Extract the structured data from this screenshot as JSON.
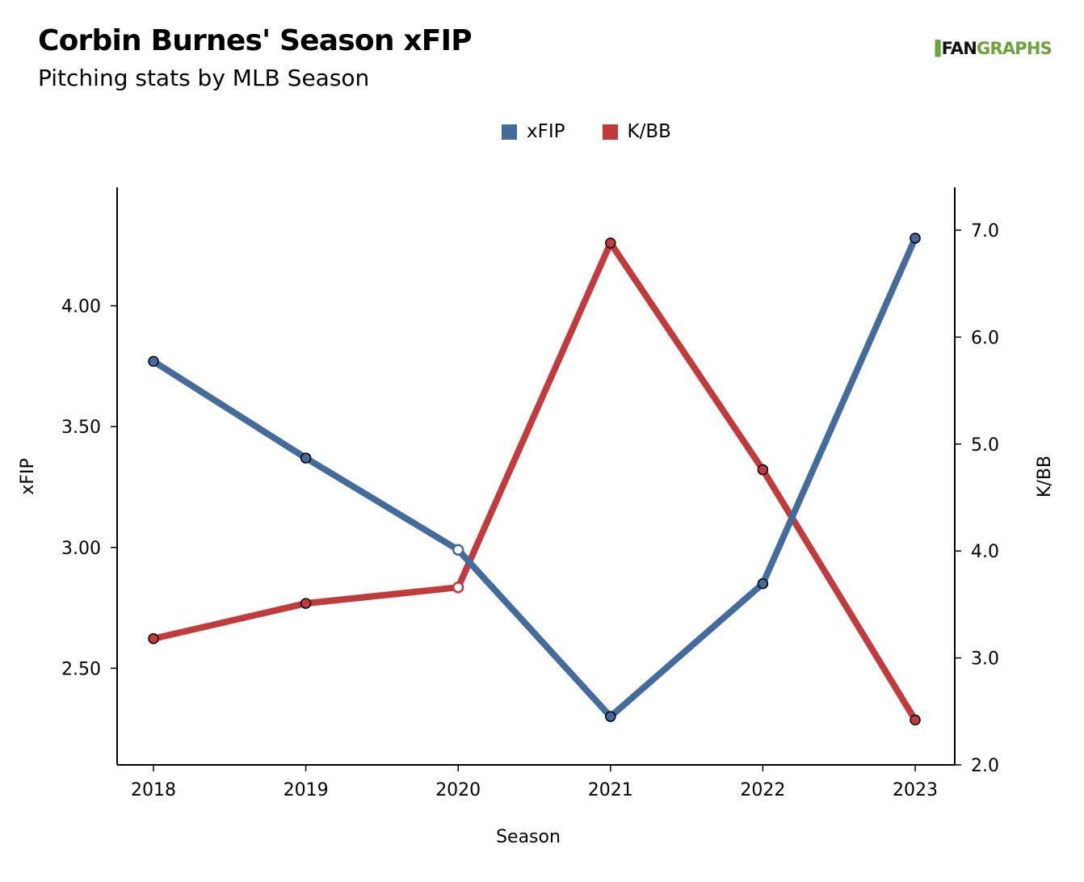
{
  "title": "Corbin Burnes' Season xFIP",
  "subtitle": "Pitching stats by MLB Season",
  "logo": {
    "mark": "▐",
    "fan": "FAN",
    "graphs": "GRAPHS"
  },
  "colors": {
    "xfip": "#436b9b",
    "kbb": "#c23b3c",
    "logo_green": "#6aa43b"
  },
  "chart_data": {
    "type": "line",
    "categories": [
      "2018",
      "2019",
      "2020",
      "2021",
      "2022",
      "2023"
    ],
    "xlabel": "Season",
    "y_left": {
      "label": "xFIP",
      "ticks": [
        "2.50",
        "3.00",
        "3.50",
        "4.00"
      ],
      "tick_values": [
        2.5,
        3.0,
        3.5,
        4.0
      ],
      "range": [
        2.1,
        4.49
      ]
    },
    "y_right": {
      "label": "K/BB",
      "ticks": [
        "2.0",
        "3.0",
        "4.0",
        "5.0",
        "6.0",
        "7.0"
      ],
      "tick_values": [
        2.0,
        3.0,
        4.0,
        5.0,
        6.0,
        7.0
      ],
      "range": [
        2.0,
        7.4
      ]
    },
    "series": [
      {
        "name": "xFIP",
        "axis": "left",
        "values": [
          3.77,
          3.37,
          2.99,
          2.3,
          2.85,
          4.28
        ],
        "hollow": [
          false,
          false,
          true,
          false,
          false,
          false
        ]
      },
      {
        "name": "K/BB",
        "axis": "right",
        "values": [
          3.18,
          3.51,
          3.66,
          6.88,
          4.76,
          2.42
        ],
        "hollow": [
          false,
          false,
          true,
          false,
          false,
          false
        ]
      }
    ],
    "grid": false,
    "legend_position": "top-center"
  }
}
